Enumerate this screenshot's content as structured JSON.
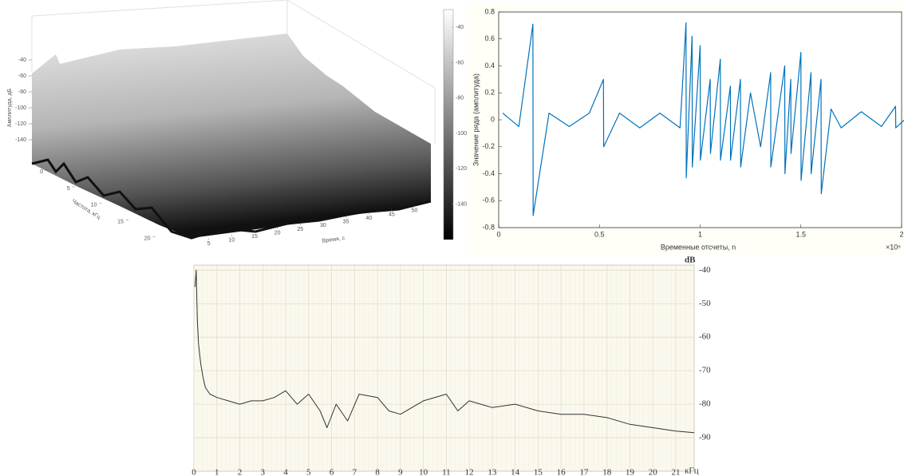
{
  "chart_data": [
    {
      "type": "surface",
      "xlabel": "Время, с",
      "ylabel": "Частота, кГц",
      "zlabel": "Амплитуда, дБ",
      "xlim": [
        0,
        52
      ],
      "xticks": [
        5,
        10,
        15,
        20,
        25,
        30,
        35,
        40,
        45,
        50
      ],
      "ylim": [
        0,
        22
      ],
      "yticks": [
        0,
        5,
        10,
        15,
        20
      ],
      "zlim": [
        -160,
        -30
      ],
      "zticks": [
        -40,
        -60,
        -80,
        -100,
        -120,
        -140
      ],
      "clim": [
        -160,
        -30
      ],
      "colorbar_ticks": [
        -40,
        -60,
        -80,
        -100,
        -120,
        -140
      ],
      "colormap": "gray"
    },
    {
      "type": "line",
      "xlabel": "Временные отсчеты, n",
      "ylabel": "Значение ряда (амплитуда)",
      "x_multiplier": "×10⁵",
      "xlim": [
        0,
        2
      ],
      "xticks": [
        0,
        0.5,
        1,
        1.5,
        2
      ],
      "ylim": [
        -0.8,
        0.8
      ],
      "yticks": [
        -0.8,
        -0.6,
        -0.4,
        -0.2,
        0,
        0.2,
        0.4,
        0.6,
        0.8
      ],
      "grid": false,
      "y_axis_position": "left",
      "color": "#0072bd",
      "x": [
        0.02,
        0.1,
        0.17,
        0.171,
        0.25,
        0.35,
        0.45,
        0.52,
        0.521,
        0.6,
        0.7,
        0.8,
        0.9,
        0.93,
        0.931,
        0.96,
        0.961,
        1.0,
        1.001,
        1.05,
        1.051,
        1.1,
        1.101,
        1.15,
        1.151,
        1.2,
        1.201,
        1.25,
        1.3,
        1.35,
        1.351,
        1.42,
        1.421,
        1.45,
        1.451,
        1.5,
        1.501,
        1.55,
        1.551,
        1.6,
        1.601,
        1.65,
        1.7,
        1.8,
        1.9,
        1.97,
        1.971,
        2.05,
        2.15
      ],
      "values": [
        0.05,
        -0.05,
        0.71,
        -0.71,
        0.05,
        -0.05,
        0.05,
        0.3,
        -0.2,
        0.05,
        -0.06,
        0.05,
        -0.06,
        0.72,
        -0.43,
        0.62,
        -0.35,
        0.55,
        -0.3,
        0.3,
        -0.25,
        0.45,
        -0.3,
        0.25,
        -0.3,
        0.3,
        -0.35,
        0.2,
        -0.2,
        0.35,
        -0.35,
        0.4,
        -0.4,
        0.3,
        -0.25,
        0.5,
        -0.45,
        0.35,
        -0.4,
        0.3,
        -0.55,
        0.08,
        -0.06,
        0.06,
        -0.05,
        0.1,
        -0.06,
        0.05,
        0.04
      ]
    },
    {
      "type": "line",
      "x_unit_label": "кГц",
      "y_unit_label": "dB",
      "xlim": [
        0,
        21.8
      ],
      "xticks": [
        0,
        1,
        2,
        3,
        4,
        5,
        6,
        7,
        8,
        9,
        10,
        11,
        12,
        13,
        14,
        15,
        16,
        17,
        18,
        19,
        20,
        21
      ],
      "ylim": [
        -100,
        -38.5
      ],
      "yticks": [
        -40,
        -50,
        -60,
        -70,
        -80,
        -90
      ],
      "grid": true,
      "y_axis_position": "right",
      "color": "#333333",
      "x": [
        0.05,
        0.1,
        0.15,
        0.2,
        0.3,
        0.4,
        0.5,
        0.7,
        1,
        1.5,
        2,
        2.5,
        3,
        3.5,
        4,
        4.5,
        5,
        5.5,
        5.8,
        6.2,
        6.7,
        7.2,
        8,
        8.5,
        9,
        10,
        11,
        11.5,
        12,
        13,
        14,
        15,
        16,
        17,
        18,
        19,
        20,
        21,
        21.8
      ],
      "values": [
        -45,
        -40,
        -55,
        -62,
        -68,
        -72,
        -75,
        -77,
        -78,
        -79,
        -80,
        -79,
        -79,
        -78,
        -76,
        -80,
        -77,
        -82,
        -87,
        -80,
        -85,
        -77,
        -78,
        -82,
        -83,
        -79,
        -77,
        -82,
        -79,
        -81,
        -80,
        -82,
        -83,
        -83,
        -84,
        -86,
        -87,
        -88,
        -88.5
      ]
    }
  ]
}
